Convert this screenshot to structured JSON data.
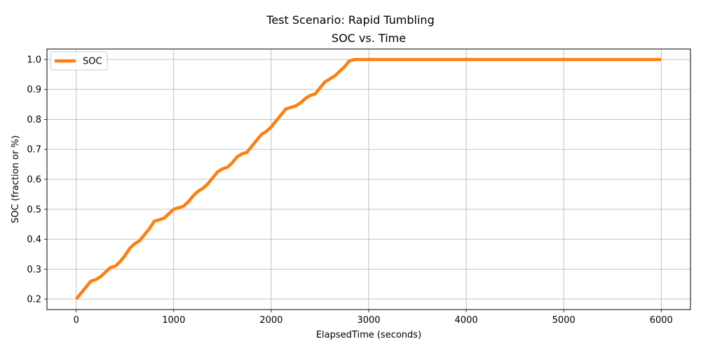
{
  "chart_data": {
    "type": "line",
    "suptitle": "Test Scenario: Rapid Tumbling",
    "title": "SOC vs. Time",
    "xlabel": "ElapsedTime (seconds)",
    "ylabel": "SOC (fraction or %)",
    "xlim": [
      -300,
      6300
    ],
    "ylim": [
      0.165,
      1.035
    ],
    "xticks": [
      0,
      1000,
      2000,
      3000,
      4000,
      5000,
      6000
    ],
    "xtick_labels": [
      "0",
      "1000",
      "2000",
      "3000",
      "4000",
      "5000",
      "6000"
    ],
    "yticks": [
      0.2,
      0.3,
      0.4,
      0.5,
      0.6,
      0.7,
      0.8,
      0.9,
      1.0
    ],
    "ytick_labels": [
      "0.2",
      "0.3",
      "0.4",
      "0.5",
      "0.6",
      "0.7",
      "0.8",
      "0.9",
      "1.0"
    ],
    "grid": true,
    "legend_position": "top-left",
    "series": [
      {
        "name": "SOC",
        "color": "#ff7f0e",
        "x": [
          0,
          50,
          100,
          150,
          200,
          250,
          300,
          350,
          400,
          450,
          500,
          550,
          600,
          650,
          700,
          750,
          800,
          850,
          900,
          950,
          1000,
          1050,
          1100,
          1150,
          1200,
          1250,
          1300,
          1350,
          1400,
          1450,
          1500,
          1550,
          1600,
          1650,
          1700,
          1750,
          1800,
          1850,
          1900,
          1950,
          2000,
          2050,
          2100,
          2150,
          2200,
          2250,
          2300,
          2350,
          2400,
          2450,
          2500,
          2550,
          2600,
          2650,
          2700,
          2750,
          2800,
          2850,
          3000,
          4000,
          5000,
          6000
        ],
        "y": [
          0.2,
          0.22,
          0.24,
          0.26,
          0.265,
          0.275,
          0.29,
          0.305,
          0.31,
          0.325,
          0.345,
          0.37,
          0.385,
          0.395,
          0.415,
          0.435,
          0.46,
          0.465,
          0.47,
          0.485,
          0.5,
          0.505,
          0.51,
          0.525,
          0.545,
          0.56,
          0.57,
          0.585,
          0.605,
          0.625,
          0.635,
          0.64,
          0.655,
          0.675,
          0.685,
          0.69,
          0.71,
          0.73,
          0.75,
          0.76,
          0.775,
          0.795,
          0.815,
          0.835,
          0.84,
          0.845,
          0.855,
          0.87,
          0.88,
          0.885,
          0.905,
          0.925,
          0.935,
          0.945,
          0.96,
          0.975,
          0.995,
          1.0,
          1.0,
          1.0,
          1.0,
          1.0
        ]
      }
    ]
  }
}
